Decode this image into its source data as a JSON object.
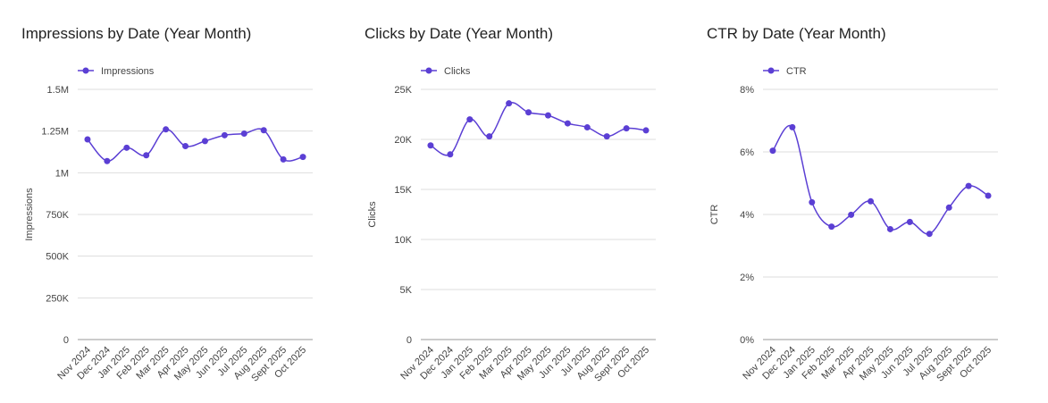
{
  "chart_data": [
    {
      "type": "line",
      "title": "Impressions by Date (Year Month)",
      "y_label": "Impressions",
      "categories": [
        "Nov 2024",
        "Dec 2024",
        "Jan 2025",
        "Feb 2025",
        "Mar 2025",
        "Apr 2025",
        "May 2025",
        "Jun 2025",
        "Jul 2025",
        "Aug 2025",
        "Sept 2025",
        "Oct 2025"
      ],
      "series": [
        {
          "name": "Impressions",
          "color": "#5b3fd4",
          "values": [
            1200000,
            1070000,
            1150000,
            1105000,
            1260000,
            1160000,
            1190000,
            1225000,
            1235000,
            1255000,
            1080000,
            1095000
          ]
        }
      ],
      "ylim": [
        0,
        1500000
      ],
      "yticks": [
        0,
        {
          "value": 250000,
          "label": "250K"
        },
        {
          "value": 500000,
          "label": "500K"
        },
        {
          "value": 750000,
          "label": "750K"
        },
        {
          "value": 1000000,
          "label": "1M"
        },
        {
          "value": 1250000,
          "label": "1.25M"
        },
        {
          "value": 1500000,
          "label": "1.5M"
        }
      ],
      "grid": true,
      "legend": "top-left"
    },
    {
      "type": "line",
      "title": "Clicks by Date (Year Month)",
      "y_label": "Clicks",
      "categories": [
        "Nov 2024",
        "Dec 2024",
        "Jan 2025",
        "Feb 2025",
        "Mar 2025",
        "Apr 2025",
        "May 2025",
        "Jun 2025",
        "Jul 2025",
        "Aug 2025",
        "Sept 2025",
        "Oct 2025"
      ],
      "series": [
        {
          "name": "Clicks",
          "color": "#5b3fd4",
          "values": [
            19400,
            18500,
            22000,
            20300,
            23600,
            22700,
            22400,
            21600,
            21200,
            20300,
            21100,
            20900
          ]
        }
      ],
      "ylim": [
        0,
        25000
      ],
      "yticks": [
        0,
        {
          "value": 5000,
          "label": "5K"
        },
        {
          "value": 10000,
          "label": "10K"
        },
        {
          "value": 15000,
          "label": "15K"
        },
        {
          "value": 20000,
          "label": "20K"
        },
        {
          "value": 25000,
          "label": "25K"
        }
      ],
      "grid": true,
      "legend": "top-left"
    },
    {
      "type": "line",
      "title": "CTR by Date (Year Month)",
      "y_label": "CTR",
      "categories": [
        "Nov 2024",
        "Dec 2024",
        "Jan 2025",
        "Feb 2025",
        "Mar 2025",
        "Apr 2025",
        "May 2025",
        "Jun 2025",
        "Jul 2025",
        "Aug 2025",
        "Sept 2025",
        "Oct 2025"
      ],
      "series": [
        {
          "name": "CTR",
          "color": "#5b3fd4",
          "values": [
            6.04,
            6.79,
            4.39,
            3.61,
            3.99,
            4.42,
            3.53,
            3.76,
            3.38,
            4.22,
            4.91,
            4.6
          ]
        }
      ],
      "ylim": [
        0,
        8
      ],
      "yticks": [
        {
          "value": 0,
          "label": "0%"
        },
        {
          "value": 2,
          "label": "2%"
        },
        {
          "value": 4,
          "label": "4%"
        },
        {
          "value": 6,
          "label": "6%"
        },
        {
          "value": 8,
          "label": "8%"
        }
      ],
      "grid": true,
      "legend": "top-left"
    }
  ]
}
